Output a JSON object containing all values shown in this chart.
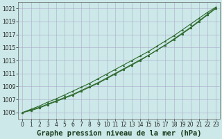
{
  "title": "Graphe pression niveau de la mer (hPa)",
  "background_color": "#cce8e8",
  "grid_color": "#aaaacc",
  "line_color": "#2d6a2d",
  "marker_color": "#2d6a2d",
  "x_values": [
    0,
    1,
    2,
    3,
    4,
    5,
    6,
    7,
    8,
    9,
    10,
    11,
    12,
    13,
    14,
    15,
    16,
    17,
    18,
    19,
    20,
    21,
    22,
    23
  ],
  "y_series": [
    [
      1005.0,
      1005.4,
      1005.8,
      1006.3,
      1006.8,
      1007.3,
      1007.8,
      1008.4,
      1009.0,
      1009.6,
      1010.3,
      1011.0,
      1011.7,
      1012.4,
      1013.1,
      1013.8,
      1014.6,
      1015.4,
      1016.2,
      1017.1,
      1018.0,
      1019.0,
      1020.0,
      1021.0
    ],
    [
      1005.0,
      1005.5,
      1006.0,
      1006.6,
      1007.1,
      1007.7,
      1008.3,
      1008.9,
      1009.5,
      1010.2,
      1010.9,
      1011.6,
      1012.3,
      1013.0,
      1013.7,
      1014.4,
      1015.2,
      1016.0,
      1016.8,
      1017.7,
      1018.6,
      1019.5,
      1020.4,
      1021.2
    ],
    [
      1005.0,
      1005.3,
      1005.7,
      1006.2,
      1006.7,
      1007.2,
      1007.7,
      1008.3,
      1008.9,
      1009.5,
      1010.2,
      1010.9,
      1011.6,
      1012.3,
      1013.0,
      1013.8,
      1014.6,
      1015.4,
      1016.3,
      1017.2,
      1018.1,
      1019.1,
      1020.1,
      1021.1
    ]
  ],
  "ylim": [
    1004.0,
    1022.0
  ],
  "yticks": [
    1005,
    1007,
    1009,
    1011,
    1013,
    1015,
    1017,
    1019,
    1021
  ],
  "xlim": [
    -0.5,
    23.5
  ],
  "xticks": [
    0,
    1,
    2,
    3,
    4,
    5,
    6,
    7,
    8,
    9,
    10,
    11,
    12,
    13,
    14,
    15,
    16,
    17,
    18,
    19,
    20,
    21,
    22,
    23
  ],
  "title_fontsize": 7.5,
  "tick_fontsize": 5.5,
  "line_width": 0.8,
  "marker_size": 2.0
}
